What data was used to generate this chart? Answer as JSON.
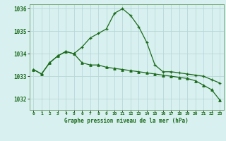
{
  "xlabel": "Graphe pression niveau de la mer (hPa)",
  "hours": [
    0,
    1,
    2,
    3,
    4,
    5,
    6,
    7,
    8,
    9,
    10,
    11,
    12,
    13,
    14,
    15,
    16,
    17,
    18,
    19,
    20,
    21,
    22,
    23
  ],
  "line1": [
    1033.3,
    1033.1,
    1033.6,
    1033.9,
    1034.1,
    1034.0,
    1034.3,
    1034.7,
    1034.9,
    1035.1,
    1035.8,
    1036.0,
    1035.7,
    1035.2,
    1034.5,
    1033.5,
    1033.2,
    1033.2,
    1033.15,
    1033.1,
    1033.05,
    1033.0,
    1032.85,
    1032.7
  ],
  "line2": [
    1033.3,
    1033.1,
    1033.6,
    1033.9,
    1034.1,
    1034.0,
    1033.6,
    1033.5,
    1033.5,
    1033.4,
    1033.35,
    1033.3,
    1033.25,
    1033.2,
    1033.15,
    1033.1,
    1033.05,
    1033.0,
    1032.95,
    1032.9,
    1032.8,
    1032.6,
    1032.4,
    1031.95
  ],
  "ylim": [
    1031.5,
    1036.2
  ],
  "yticks": [
    1032,
    1033,
    1034,
    1035,
    1036
  ],
  "line_color": "#1a6b1a",
  "bg_color": "#d9f0f0",
  "grid_color": "#b8d8d8",
  "label_color": "#1a6b1a",
  "spine_color": "#7aaa7a"
}
